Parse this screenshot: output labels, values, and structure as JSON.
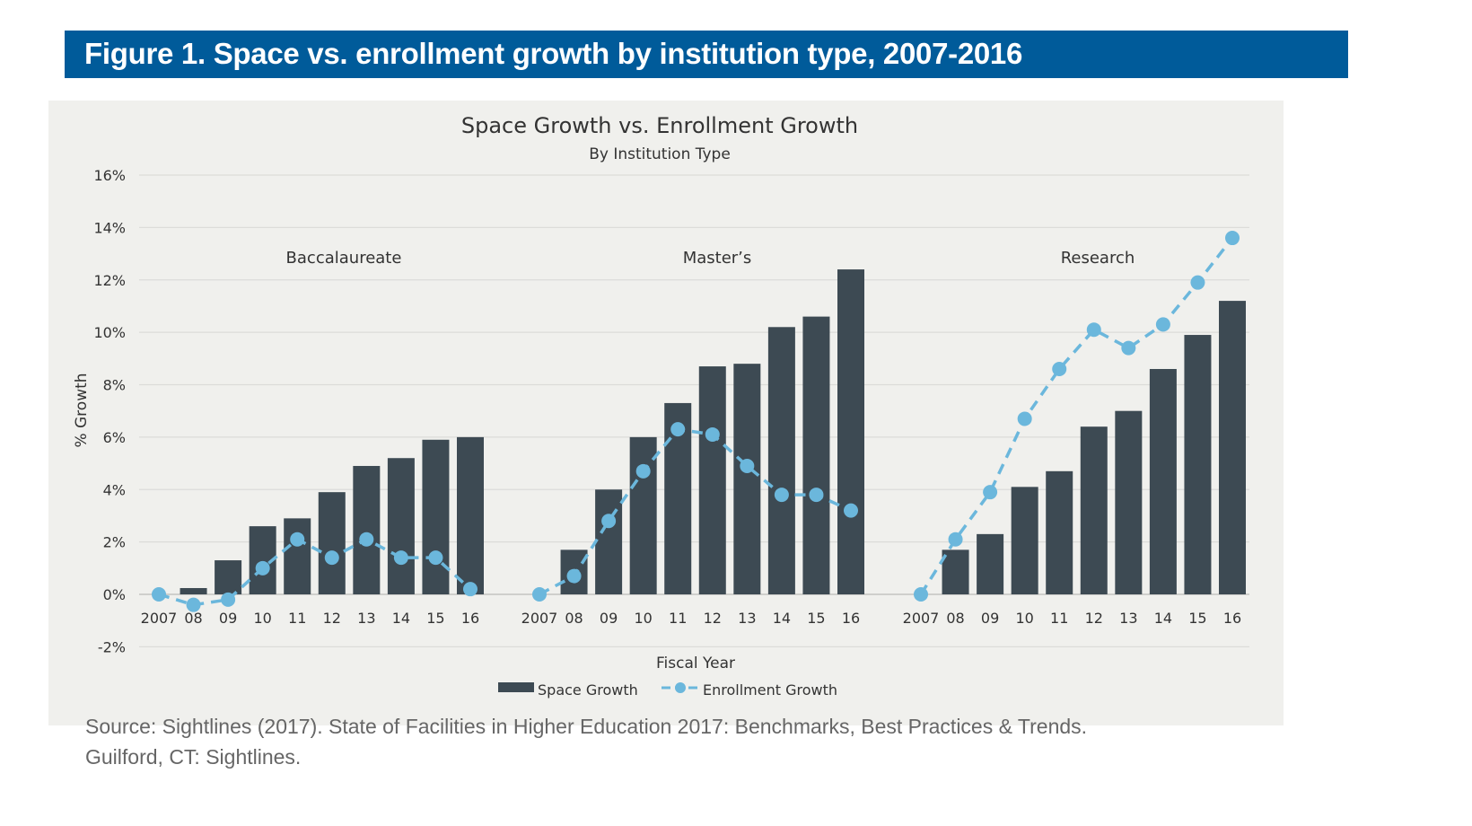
{
  "figure_title": "Figure 1. Space vs. enrollment growth by institution type, 2007-2016",
  "source_line1": "Source: Sightlines (2017). State of Facilities in Higher Education 2017: Benchmarks, Best Practices & Trends.",
  "source_line2": "Guilford, CT: Sightlines.",
  "chart_data": {
    "type": "bar",
    "title": "Space Growth vs. Enrollment Growth",
    "subtitle": "By Institution Type",
    "xlabel": "Fiscal Year",
    "ylabel": "% Growth",
    "ylim": [
      -2,
      16
    ],
    "yticks": [
      "-2%",
      "0%",
      "2%",
      "4%",
      "6%",
      "8%",
      "10%",
      "12%",
      "14%",
      "16%"
    ],
    "grid": true,
    "legend_position": "bottom",
    "legend": [
      "Space Growth",
      "Enrollment Growth"
    ],
    "colors": {
      "space": "#3d4a53",
      "enrollment": "#6bb7dc",
      "banner": "#005b9a"
    },
    "categories": [
      "2007",
      "08",
      "09",
      "10",
      "11",
      "12",
      "13",
      "14",
      "15",
      "16"
    ],
    "groups": [
      {
        "name": "Baccalaureate",
        "series": [
          {
            "name": "Space Growth",
            "type": "bar",
            "values": [
              0,
              0.24,
              1.3,
              2.6,
              2.9,
              3.9,
              4.9,
              5.2,
              5.9,
              6.0
            ]
          },
          {
            "name": "Enrollment Growth",
            "type": "line",
            "values": [
              0,
              -0.4,
              -0.2,
              1.0,
              2.1,
              1.4,
              2.1,
              1.4,
              1.4,
              0.2
            ]
          }
        ]
      },
      {
        "name": "Master’s",
        "series": [
          {
            "name": "Space Growth",
            "type": "bar",
            "values": [
              0,
              1.7,
              4.0,
              6.0,
              7.3,
              8.7,
              8.8,
              10.2,
              10.6,
              12.4
            ]
          },
          {
            "name": "Enrollment Growth",
            "type": "line",
            "values": [
              0,
              0.7,
              2.8,
              4.7,
              6.3,
              6.1,
              4.9,
              3.8,
              3.8,
              3.2
            ]
          }
        ]
      },
      {
        "name": "Research",
        "series": [
          {
            "name": "Space Growth",
            "type": "bar",
            "values": [
              0,
              1.7,
              2.3,
              4.1,
              4.7,
              6.4,
              7.0,
              8.6,
              9.9,
              11.2
            ]
          },
          {
            "name": "Enrollment Growth",
            "type": "line",
            "values": [
              0,
              2.1,
              3.9,
              6.7,
              8.6,
              10.1,
              9.4,
              10.3,
              11.9,
              13.6
            ]
          }
        ]
      }
    ]
  }
}
